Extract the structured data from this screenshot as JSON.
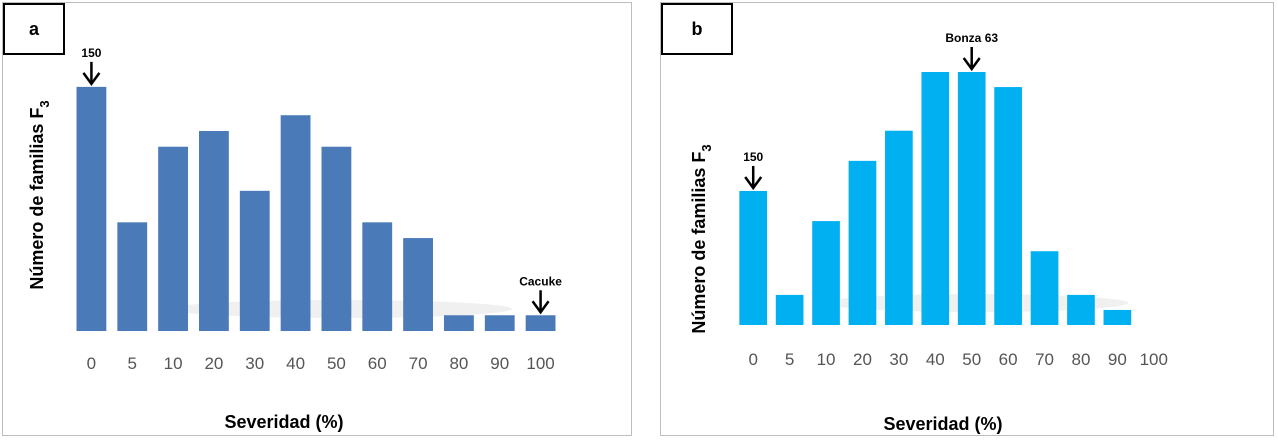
{
  "chart_data": [
    {
      "type": "bar",
      "panel_label": "a",
      "categories": [
        "0",
        "5",
        "10",
        "20",
        "30",
        "40",
        "50",
        "60",
        "70",
        "80",
        "90",
        "100"
      ],
      "values": [
        15.5,
        6.9,
        11.7,
        12.7,
        8.9,
        13.7,
        11.7,
        6.9,
        5.9,
        1.0,
        1.0,
        1.0
      ],
      "ylim": [
        0,
        16
      ],
      "xlabel": "Severidad (%)",
      "ylabel": "Número de familias F",
      "ylabel_subscript": "3",
      "bar_color": "#4a7bb8",
      "grid": false,
      "annotations": [
        {
          "text": "150",
          "category": "0",
          "arrow": true
        },
        {
          "text": "Cacuke",
          "category": "100",
          "arrow": true
        }
      ]
    },
    {
      "type": "bar",
      "panel_label": "b",
      "categories": [
        "0",
        "5",
        "10",
        "20",
        "30",
        "40",
        "50",
        "60",
        "70",
        "80",
        "90",
        "100"
      ],
      "values": [
        8.9,
        2.0,
        6.9,
        10.9,
        12.9,
        16.8,
        16.8,
        15.8,
        4.9,
        2.0,
        1.0,
        0
      ],
      "ylim": [
        0,
        17
      ],
      "xlabel": "Severidad (%)",
      "ylabel": "Número de familias F",
      "ylabel_subscript": "3",
      "bar_color": "#00b0f0",
      "grid": false,
      "annotations": [
        {
          "text": "150",
          "category": "0",
          "arrow": true
        },
        {
          "text": "Bonza 63",
          "category": "50",
          "arrow": true
        }
      ]
    }
  ]
}
